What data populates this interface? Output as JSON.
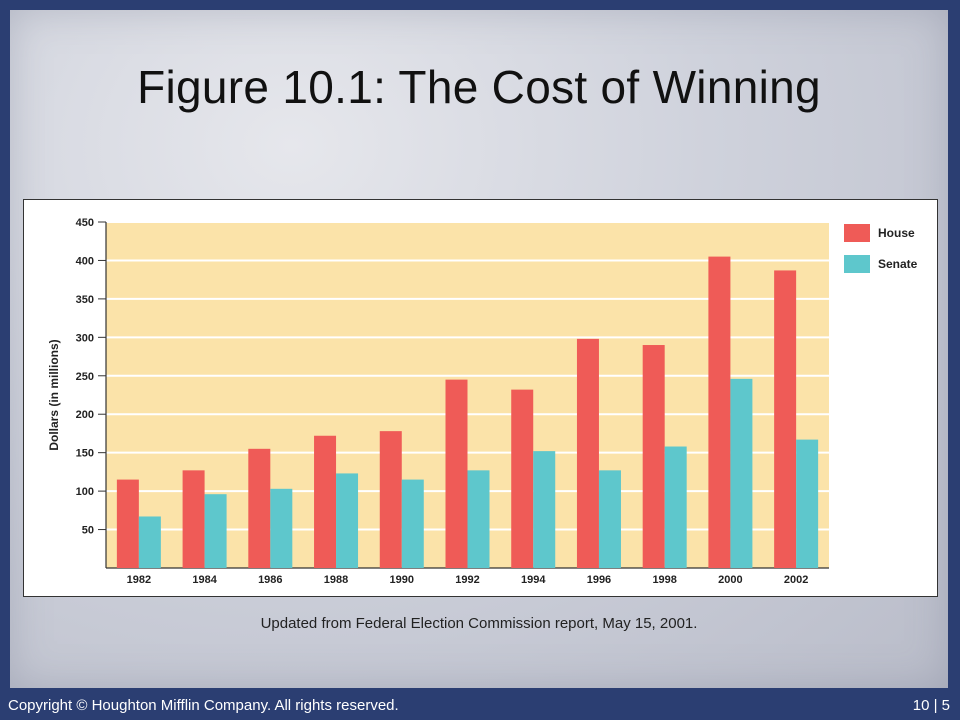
{
  "slide": {
    "title": "Figure 10.1: The Cost of Winning",
    "caption": "Updated from Federal Election Commission report, May 15, 2001.",
    "footer_left": "Copyright © Houghton Mifflin Company. All rights reserved.",
    "footer_right": "10 | 5"
  },
  "colors": {
    "house": "#ef5b57",
    "senate": "#5ec7cc",
    "plot_bg": "#fbe3a9",
    "grid": "#ffffff"
  },
  "chart_data": {
    "type": "bar",
    "title": "",
    "xlabel": "",
    "ylabel": "Dollars (in millions)",
    "categories": [
      "1982",
      "1984",
      "1986",
      "1988",
      "1990",
      "1992",
      "1994",
      "1996",
      "1998",
      "2000",
      "2002"
    ],
    "series": [
      {
        "name": "House",
        "values": [
          115,
          127,
          155,
          172,
          178,
          245,
          232,
          298,
          290,
          405,
          387
        ]
      },
      {
        "name": "Senate",
        "values": [
          67,
          96,
          103,
          123,
          115,
          127,
          152,
          127,
          158,
          246,
          167
        ]
      }
    ],
    "ylim": [
      0,
      450
    ],
    "yticks": [
      50,
      100,
      150,
      200,
      250,
      300,
      350,
      400,
      450
    ],
    "grid": true,
    "legend": "top-right"
  }
}
